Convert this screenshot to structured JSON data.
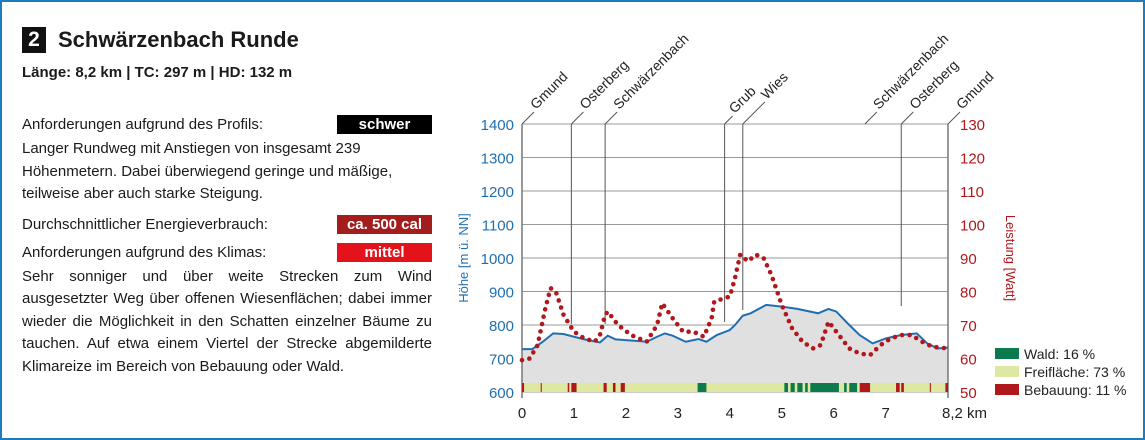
{
  "header": {
    "number": "2",
    "title": "Schwärzenbach Runde",
    "stats": "Länge: 8,2 km | TC: 297 m | HD: 132 m"
  },
  "info": {
    "profile_label": "Anforderungen aufgrund des Profils:",
    "profile_value": "schwer",
    "profile_color": "#000000",
    "profile_text": "Langer Rundweg mit Anstiegen von insgesamt 239 Höhenmetern. Dabei überwiegend geringe und mäßige, teilweise aber auch starke Steigung.",
    "energy_label": "Durchschnittlicher Energieverbrauch:",
    "energy_value": "ca. 500 cal",
    "energy_color": "#a51c1c",
    "climate_label": "Anforderungen aufgrund des Klimas:",
    "climate_value": "mittel",
    "climate_color": "#e3121b",
    "climate_text": "Sehr sonniger und über weite Strecken zum Wind ausgesetzter Weg über offenen Wiesenflächen; dabei immer wieder die Möglichkeit in den Schatten einzelner Bäume zu tauchen. Auf etwa einem Viertel der Strecke abgemilderte Klimareize im Bereich von Bebauung oder Wald."
  },
  "chart_data": {
    "type": "line",
    "xlabel": "km",
    "ylabel": "Höhe [m ü. NN]",
    "y2label": "Leistung [Watt]",
    "xlim": [
      0,
      8.2
    ],
    "ylim": [
      600,
      1400
    ],
    "y2lim": [
      50,
      130
    ],
    "xticks": [
      "0",
      "1",
      "2",
      "3",
      "4",
      "5",
      "6",
      "7",
      "8,2 km"
    ],
    "xtick_values": [
      0,
      1,
      2,
      3,
      4,
      5,
      6,
      7,
      8.2
    ],
    "yticks": [
      "600",
      "700",
      "800",
      "900",
      "1000",
      "1100",
      "1200",
      "1300",
      "1400"
    ],
    "y2ticks": [
      "50",
      "60",
      "70",
      "80",
      "90",
      "100",
      "110",
      "120",
      "130"
    ],
    "places": [
      {
        "name": "Gmund",
        "km": 0
      },
      {
        "name": "Osterberg",
        "km": 0.95
      },
      {
        "name": "Schwärzenbach",
        "km": 1.6
      },
      {
        "name": "Grub",
        "km": 3.9
      },
      {
        "name": "Wies",
        "km": 4.25
      },
      {
        "name": "Schwärzenbach",
        "km": 6.6
      },
      {
        "name": "Osterberg",
        "km": 7.3
      },
      {
        "name": "Gmund",
        "km": 8.2
      }
    ],
    "series": [
      {
        "name": "Höhe",
        "color": "#1f6fb0",
        "points": [
          [
            0,
            728
          ],
          [
            0.2,
            728
          ],
          [
            0.4,
            750
          ],
          [
            0.6,
            775
          ],
          [
            0.8,
            773
          ],
          [
            1.0,
            765
          ],
          [
            1.2,
            757
          ],
          [
            1.5,
            748
          ],
          [
            1.65,
            768
          ],
          [
            1.8,
            757
          ],
          [
            2.0,
            755
          ],
          [
            2.4,
            750
          ],
          [
            2.6,
            765
          ],
          [
            2.75,
            775
          ],
          [
            2.9,
            768
          ],
          [
            3.15,
            750
          ],
          [
            3.4,
            758
          ],
          [
            3.55,
            750
          ],
          [
            3.75,
            770
          ],
          [
            4.0,
            785
          ],
          [
            4.1,
            800
          ],
          [
            4.25,
            828
          ],
          [
            4.4,
            835
          ],
          [
            4.7,
            860
          ],
          [
            5.0,
            855
          ],
          [
            5.3,
            848
          ],
          [
            5.7,
            835
          ],
          [
            5.9,
            848
          ],
          [
            6.05,
            840
          ],
          [
            6.3,
            800
          ],
          [
            6.5,
            770
          ],
          [
            6.75,
            745
          ],
          [
            7.0,
            760
          ],
          [
            7.3,
            770
          ],
          [
            7.6,
            775
          ],
          [
            7.8,
            745
          ],
          [
            8.0,
            730
          ],
          [
            8.2,
            733
          ]
        ]
      },
      {
        "name": "Leistung",
        "color": "#b0181c",
        "points": [
          [
            0,
            59.5
          ],
          [
            0.15,
            60
          ],
          [
            0.3,
            64
          ],
          [
            0.45,
            75
          ],
          [
            0.55,
            81
          ],
          [
            0.65,
            80
          ],
          [
            0.8,
            73
          ],
          [
            1.0,
            68
          ],
          [
            1.2,
            66
          ],
          [
            1.4,
            65
          ],
          [
            1.5,
            67
          ],
          [
            1.6,
            73
          ],
          [
            1.65,
            74
          ],
          [
            1.85,
            70
          ],
          [
            2.1,
            67
          ],
          [
            2.4,
            65
          ],
          [
            2.6,
            70
          ],
          [
            2.7,
            76.5
          ],
          [
            2.9,
            72
          ],
          [
            3.1,
            68
          ],
          [
            3.3,
            68
          ],
          [
            3.5,
            66.5
          ],
          [
            3.65,
            72
          ],
          [
            3.7,
            77
          ],
          [
            3.9,
            78
          ],
          [
            4.0,
            78.5
          ],
          [
            4.1,
            84
          ],
          [
            4.2,
            91
          ],
          [
            4.35,
            89
          ],
          [
            4.5,
            91
          ],
          [
            4.65,
            90
          ],
          [
            4.8,
            85
          ],
          [
            5.0,
            76
          ],
          [
            5.2,
            69
          ],
          [
            5.4,
            65
          ],
          [
            5.6,
            63
          ],
          [
            5.75,
            64
          ],
          [
            5.9,
            71
          ],
          [
            6.1,
            67
          ],
          [
            6.3,
            63
          ],
          [
            6.5,
            61.5
          ],
          [
            6.7,
            61
          ],
          [
            6.9,
            64
          ],
          [
            7.1,
            66
          ],
          [
            7.3,
            67
          ],
          [
            7.5,
            67
          ],
          [
            7.7,
            65
          ],
          [
            7.9,
            63.5
          ],
          [
            8.2,
            63
          ]
        ]
      }
    ],
    "landuse_segments": [
      {
        "type": "Bebauung",
        "from": 0,
        "to": 0.04
      },
      {
        "type": "Bebauung",
        "from": 0.36,
        "to": 0.38
      },
      {
        "type": "Bebauung",
        "from": 0.88,
        "to": 0.91
      },
      {
        "type": "Bebauung",
        "from": 0.95,
        "to": 1.05
      },
      {
        "type": "Bebauung",
        "from": 1.57,
        "to": 1.63
      },
      {
        "type": "Bebauung",
        "from": 1.75,
        "to": 1.8
      },
      {
        "type": "Bebauung",
        "from": 1.9,
        "to": 1.98
      },
      {
        "type": "Wald",
        "from": 3.38,
        "to": 3.55
      },
      {
        "type": "Wald",
        "from": 5.05,
        "to": 5.12
      },
      {
        "type": "Wald",
        "from": 5.17,
        "to": 5.25
      },
      {
        "type": "Wald",
        "from": 5.3,
        "to": 5.4
      },
      {
        "type": "Wald",
        "from": 5.45,
        "to": 5.5
      },
      {
        "type": "Wald",
        "from": 5.55,
        "to": 6.1
      },
      {
        "type": "Wald",
        "from": 6.2,
        "to": 6.25
      },
      {
        "type": "Wald",
        "from": 6.3,
        "to": 6.45
      },
      {
        "type": "Bebauung",
        "from": 6.5,
        "to": 6.7
      },
      {
        "type": "Bebauung",
        "from": 7.2,
        "to": 7.27
      },
      {
        "type": "Bebauung",
        "from": 7.3,
        "to": 7.35
      },
      {
        "type": "Bebauung",
        "from": 7.85,
        "to": 7.87
      },
      {
        "type": "Bebauung",
        "from": 8.15,
        "to": 8.2
      }
    ],
    "legend": [
      {
        "label": "Wald: 16 %",
        "color": "#0b7a4c"
      },
      {
        "label": "Freifläche: 73 %",
        "color": "#dfe8a0"
      },
      {
        "label": "Bebauung: 11 %",
        "color": "#b0181c"
      }
    ]
  }
}
